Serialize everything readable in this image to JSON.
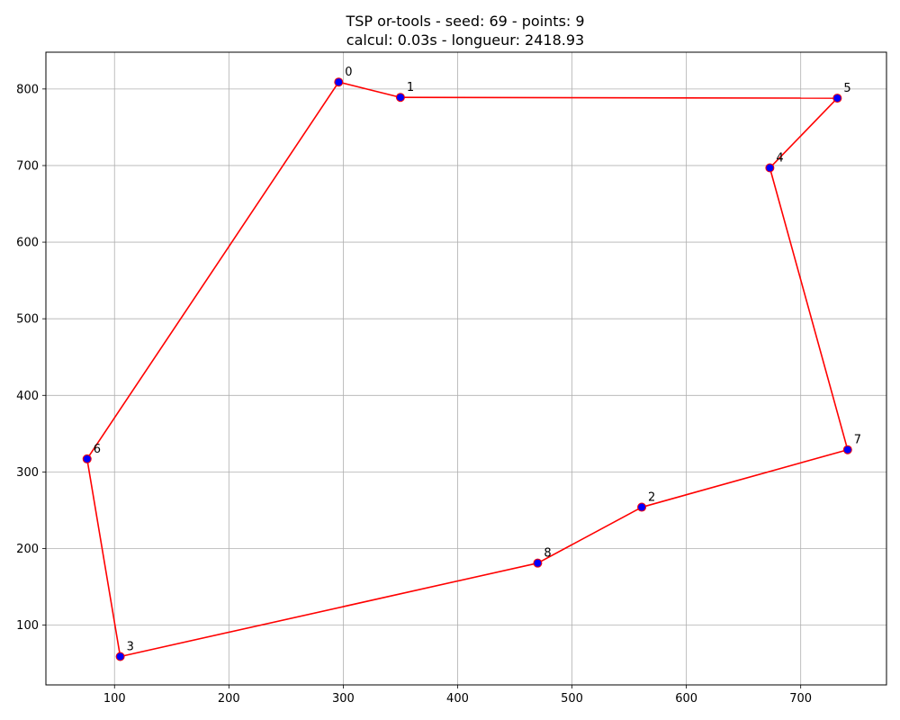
{
  "chart_data": {
    "type": "scatter",
    "title_line1": "TSP or-tools - seed: 69 - points: 9",
    "title_line2": "calcul: 0.03s - longueur: 2418.93",
    "xlabel": "",
    "ylabel": "",
    "xlim": [
      40,
      775
    ],
    "ylim": [
      22,
      848
    ],
    "xticks": [
      100,
      200,
      300,
      400,
      500,
      600,
      700
    ],
    "yticks": [
      100,
      200,
      300,
      400,
      500,
      600,
      700,
      800
    ],
    "grid": true,
    "points": [
      {
        "label": "0",
        "x": 296,
        "y": 809
      },
      {
        "label": "1",
        "x": 350,
        "y": 789
      },
      {
        "label": "2",
        "x": 561,
        "y": 254
      },
      {
        "label": "3",
        "x": 105,
        "y": 59
      },
      {
        "label": "4",
        "x": 673,
        "y": 697
      },
      {
        "label": "5",
        "x": 732,
        "y": 788
      },
      {
        "label": "6",
        "x": 76,
        "y": 317
      },
      {
        "label": "7",
        "x": 741,
        "y": 329
      },
      {
        "label": "8",
        "x": 470,
        "y": 181
      }
    ],
    "tour": [
      0,
      1,
      5,
      4,
      7,
      2,
      8,
      3,
      6,
      0
    ],
    "colors": {
      "route": "#ff0000",
      "point_fill": "#0000ff",
      "point_edge": "#ff0000",
      "grid": "#b0b0b0",
      "axes": "#000000"
    }
  }
}
